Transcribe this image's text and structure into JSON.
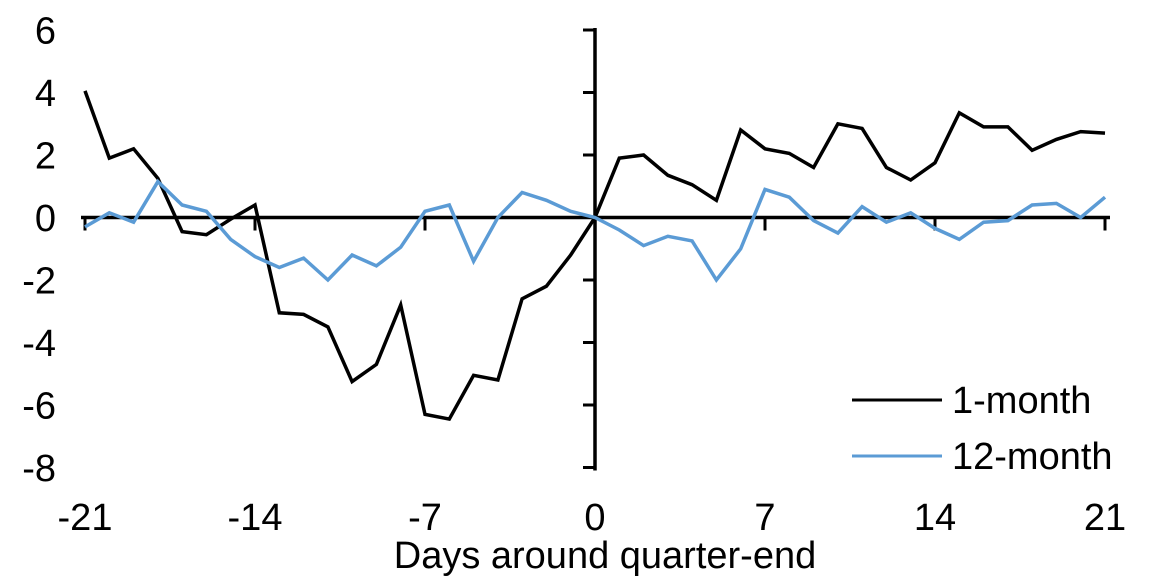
{
  "chart_data": {
    "type": "line",
    "title": "",
    "xlabel": "Days around quarter-end",
    "ylabel": "",
    "x_range": [
      -21,
      21
    ],
    "y_range": [
      -8,
      6
    ],
    "x_ticks": [
      "-21",
      "-14",
      "-7",
      "0",
      "7",
      "14",
      "21"
    ],
    "x_tick_values": [
      -21,
      -14,
      -7,
      0,
      7,
      14,
      21
    ],
    "y_ticks": [
      "6",
      "4",
      "2",
      "0",
      "-2",
      "-4",
      "-6",
      "-8"
    ],
    "y_tick_values": [
      6,
      4,
      2,
      0,
      -2,
      -4,
      -6,
      -8
    ],
    "grid": false,
    "legend_position": "inside-bottom-right",
    "axis_color": "#000000",
    "x": [
      -21,
      -20,
      -19,
      -18,
      -17,
      -16,
      -15,
      -14,
      -13,
      -12,
      -11,
      -10,
      -9,
      -8,
      -7,
      -6,
      -5,
      -4,
      -3,
      -2,
      -1,
      0,
      1,
      2,
      3,
      4,
      5,
      6,
      7,
      8,
      9,
      10,
      11,
      12,
      13,
      14,
      15,
      16,
      17,
      18,
      19,
      20,
      21
    ],
    "series": [
      {
        "name": "1-month",
        "color": "#000000",
        "values": [
          4.05,
          1.9,
          2.2,
          1.25,
          -0.45,
          -0.55,
          -0.05,
          0.4,
          -3.05,
          -3.1,
          -3.5,
          -5.25,
          -4.7,
          -2.8,
          -6.3,
          -6.45,
          -5.05,
          -5.2,
          -2.6,
          -2.2,
          -1.2,
          0.0,
          1.9,
          2.0,
          1.35,
          1.05,
          0.55,
          2.8,
          2.2,
          2.05,
          1.6,
          3.0,
          2.85,
          1.6,
          1.2,
          1.75,
          3.35,
          2.9,
          2.9,
          2.15,
          2.5,
          2.75,
          2.7
        ]
      },
      {
        "name": "12-month",
        "color": "#5B9BD5",
        "values": [
          -0.3,
          0.15,
          -0.15,
          1.15,
          0.4,
          0.2,
          -0.7,
          -1.25,
          -1.6,
          -1.3,
          -2.0,
          -1.2,
          -1.55,
          -0.95,
          0.2,
          0.4,
          -1.4,
          0.0,
          0.8,
          0.55,
          0.2,
          0.0,
          -0.4,
          -0.9,
          -0.6,
          -0.75,
          -2.0,
          -1.0,
          0.9,
          0.65,
          -0.1,
          -0.5,
          0.35,
          -0.15,
          0.15,
          -0.35,
          -0.7,
          -0.15,
          -0.1,
          0.4,
          0.45,
          0.0,
          0.65
        ]
      }
    ]
  }
}
